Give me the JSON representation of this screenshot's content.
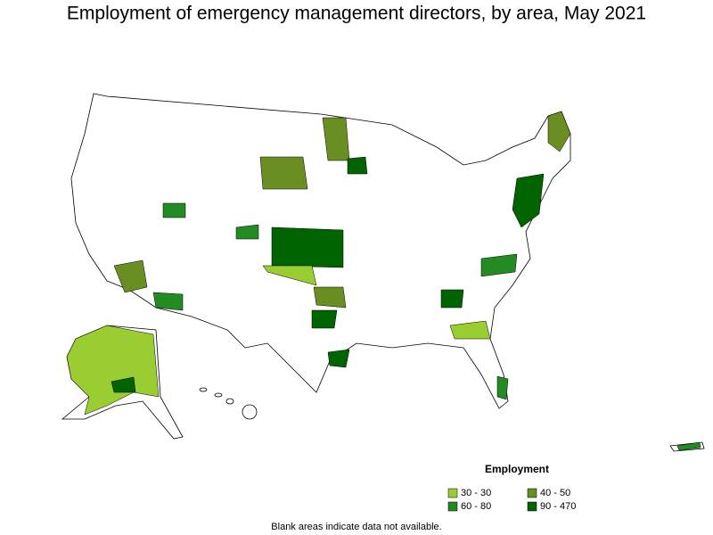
{
  "title": "Employment of emergency management directors, by area, May 2021",
  "legend": {
    "title": "Employment",
    "items": [
      {
        "label": "30 - 30",
        "color": "#9acd32"
      },
      {
        "label": "40 - 50",
        "color": "#6b8e23"
      },
      {
        "label": "60 - 80",
        "color": "#228b22"
      },
      {
        "label": "90 - 470",
        "color": "#006400"
      }
    ]
  },
  "note": "Blank areas indicate data not available."
}
